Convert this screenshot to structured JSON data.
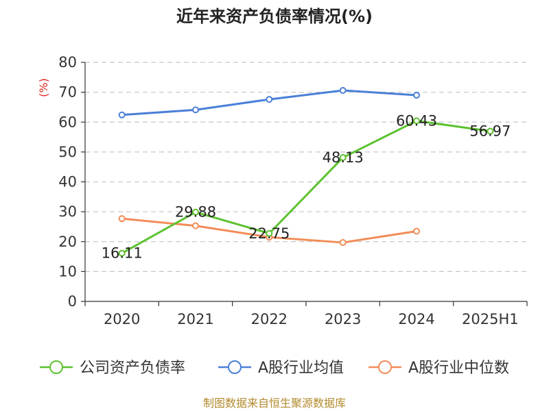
{
  "chart_data": {
    "type": "line",
    "title": "近年来资产负债率情况(%)",
    "ylabel": "(%)",
    "xlabel": "",
    "ylim": [
      0,
      80
    ],
    "yticks": [
      0,
      10,
      20,
      30,
      40,
      50,
      60,
      70,
      80
    ],
    "categories": [
      "2020",
      "2021",
      "2022",
      "2023",
      "2024",
      "2025H1"
    ],
    "grid": true,
    "legend_position": "bottom",
    "series": [
      {
        "name": "公司资产负债率",
        "color": "#5cc12e",
        "values": [
          16.11,
          29.88,
          22.75,
          48.13,
          60.43,
          56.97
        ],
        "labels": [
          "16.11",
          "29.88",
          "22.75",
          "48.13",
          "60.43",
          "56.97"
        ]
      },
      {
        "name": "A股行业均值",
        "color": "#4a7fd8",
        "values": [
          62.4,
          64.1,
          67.6,
          70.6,
          69.0,
          null
        ]
      },
      {
        "name": "A股行业中位数",
        "color": "#f28c58",
        "values": [
          27.7,
          25.3,
          21.5,
          19.7,
          23.5,
          null
        ]
      }
    ]
  },
  "footer": {
    "source": "制图数据来自恒生聚源数据库"
  }
}
